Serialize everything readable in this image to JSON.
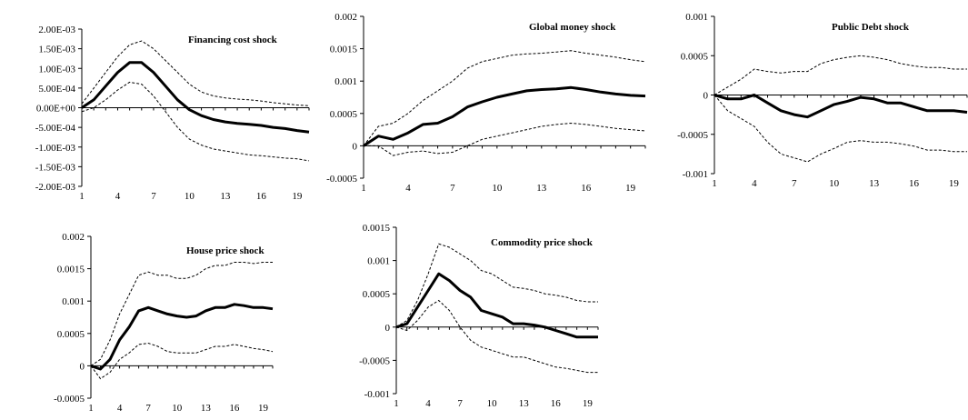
{
  "chart_data": [
    {
      "type": "line",
      "title": "Financing cost shock",
      "x": [
        1,
        2,
        3,
        4,
        5,
        6,
        7,
        8,
        9,
        10,
        11,
        12,
        13,
        14,
        15,
        16,
        17,
        18,
        19,
        20
      ],
      "ylim": [
        -0.002,
        0.002
      ],
      "yticks": [
        0.002,
        0.0015,
        0.001,
        0.0005,
        0,
        -0.0005,
        -0.001,
        -0.0015,
        -0.002
      ],
      "ytick_labels": [
        "2.00E-03",
        "1.50E-03",
        "1.00E-03",
        "5.00E-04",
        "0.00E+00",
        "-5.00E-04",
        "-1.00E-03",
        "-1.50E-03",
        "-2.00E-03"
      ],
      "xticks": [
        1,
        4,
        7,
        10,
        13,
        16,
        19
      ],
      "xtick_labels": [
        "1",
        "4",
        "7",
        "10",
        "13",
        "16",
        "19"
      ],
      "grid": false,
      "series": [
        {
          "style": "solid",
          "values": [
            0,
            0.0002,
            0.00055,
            0.0009,
            0.00115,
            0.00115,
            0.0009,
            0.00055,
            0.0002,
            -5e-05,
            -0.0002,
            -0.0003,
            -0.00036,
            -0.0004,
            -0.00042,
            -0.00045,
            -0.0005,
            -0.00053,
            -0.00058,
            -0.00062
          ]
        },
        {
          "style": "dashed",
          "values": [
            0.0001,
            0.0005,
            0.0009,
            0.0013,
            0.0016,
            0.0017,
            0.0015,
            0.0012,
            0.0009,
            0.0006,
            0.0004,
            0.0003,
            0.00025,
            0.00022,
            0.0002,
            0.00017,
            0.00013,
            0.0001,
            7e-05,
            5e-05
          ]
        },
        {
          "style": "dashed",
          "values": [
            -0.0001,
            0,
            0.0002,
            0.00045,
            0.00065,
            0.0006,
            0.0003,
            -0.0001,
            -0.0005,
            -0.0008,
            -0.00095,
            -0.00105,
            -0.0011,
            -0.00115,
            -0.0012,
            -0.00122,
            -0.00125,
            -0.00128,
            -0.0013,
            -0.00135
          ]
        }
      ]
    },
    {
      "type": "line",
      "title": "Global money shock",
      "x": [
        1,
        2,
        3,
        4,
        5,
        6,
        7,
        8,
        9,
        10,
        11,
        12,
        13,
        14,
        15,
        16,
        17,
        18,
        19,
        20
      ],
      "ylim": [
        -0.0005,
        0.002
      ],
      "yticks": [
        0.002,
        0.0015,
        0.001,
        0.0005,
        0,
        -0.0005
      ],
      "ytick_labels": [
        "0.002",
        "0.0015",
        "0.001",
        "0.0005",
        "0",
        "-0.0005"
      ],
      "xticks": [
        1,
        4,
        7,
        10,
        13,
        16,
        19
      ],
      "xtick_labels": [
        "1",
        "4",
        "7",
        "10",
        "13",
        "16",
        "19"
      ],
      "grid": false,
      "series": [
        {
          "style": "solid",
          "values": [
            0,
            0.00015,
            0.0001,
            0.0002,
            0.00033,
            0.00035,
            0.00045,
            0.0006,
            0.00068,
            0.00075,
            0.0008,
            0.00085,
            0.00087,
            0.00088,
            0.0009,
            0.00087,
            0.00083,
            0.0008,
            0.00078,
            0.00077
          ]
        },
        {
          "style": "dashed",
          "values": [
            0,
            0.0003,
            0.00035,
            0.0005,
            0.0007,
            0.00085,
            0.001,
            0.0012,
            0.0013,
            0.00135,
            0.0014,
            0.00142,
            0.00143,
            0.00145,
            0.00147,
            0.00143,
            0.0014,
            0.00137,
            0.00133,
            0.0013
          ]
        },
        {
          "style": "dashed",
          "values": [
            0,
            0,
            -0.00015,
            -0.0001,
            -8e-05,
            -0.00012,
            -0.0001,
            0,
            0.0001,
            0.00015,
            0.0002,
            0.00025,
            0.0003,
            0.00033,
            0.00035,
            0.00033,
            0.0003,
            0.00027,
            0.00025,
            0.00023
          ]
        }
      ]
    },
    {
      "type": "line",
      "title": "Public Debt shock",
      "x": [
        1,
        2,
        3,
        4,
        5,
        6,
        7,
        8,
        9,
        10,
        11,
        12,
        13,
        14,
        15,
        16,
        17,
        18,
        19,
        20
      ],
      "ylim": [
        -0.001,
        0.001
      ],
      "yticks": [
        0.001,
        0.0005,
        0,
        -0.0005,
        -0.001
      ],
      "ytick_labels": [
        "0.001",
        "0.0005",
        "0",
        "-0.0005",
        "-0.001"
      ],
      "xticks": [
        1,
        4,
        7,
        10,
        13,
        16,
        19
      ],
      "xtick_labels": [
        "1",
        "4",
        "7",
        "10",
        "13",
        "16",
        "19"
      ],
      "grid": false,
      "series": [
        {
          "style": "solid",
          "values": [
            0,
            -5e-05,
            -5e-05,
            0,
            -0.0001,
            -0.0002,
            -0.00025,
            -0.00028,
            -0.0002,
            -0.00012,
            -8e-05,
            -3e-05,
            -5e-05,
            -0.0001,
            -0.0001,
            -0.00015,
            -0.0002,
            -0.0002,
            -0.0002,
            -0.00022
          ]
        },
        {
          "style": "dashed",
          "values": [
            0,
            0.0001,
            0.0002,
            0.00033,
            0.0003,
            0.00028,
            0.0003,
            0.0003,
            0.0004,
            0.00045,
            0.00048,
            0.0005,
            0.00048,
            0.00045,
            0.0004,
            0.00037,
            0.00035,
            0.00035,
            0.00033,
            0.00033
          ]
        },
        {
          "style": "dashed",
          "values": [
            0,
            -0.0002,
            -0.0003,
            -0.0004,
            -0.0006,
            -0.00075,
            -0.0008,
            -0.00085,
            -0.00075,
            -0.00068,
            -0.0006,
            -0.00058,
            -0.0006,
            -0.0006,
            -0.00062,
            -0.00065,
            -0.0007,
            -0.0007,
            -0.00072,
            -0.00072
          ]
        }
      ]
    },
    {
      "type": "line",
      "title": "House price shock",
      "x": [
        1,
        2,
        3,
        4,
        5,
        6,
        7,
        8,
        9,
        10,
        11,
        12,
        13,
        14,
        15,
        16,
        17,
        18,
        19,
        20
      ],
      "ylim": [
        -0.0005,
        0.002
      ],
      "yticks": [
        0.002,
        0.0015,
        0.001,
        0.0005,
        0,
        -0.0005
      ],
      "ytick_labels": [
        "0.002",
        "0.0015",
        "0.001",
        "0.0005",
        "0",
        "-0.0005"
      ],
      "xticks": [
        1,
        4,
        7,
        10,
        13,
        16,
        19
      ],
      "xtick_labels": [
        "1",
        "4",
        "7",
        "10",
        "13",
        "16",
        "19"
      ],
      "grid": false,
      "series": [
        {
          "style": "solid",
          "values": [
            0,
            -5e-05,
            0.0001,
            0.0004,
            0.0006,
            0.00085,
            0.0009,
            0.00085,
            0.0008,
            0.00077,
            0.00075,
            0.00077,
            0.00085,
            0.0009,
            0.0009,
            0.00095,
            0.00093,
            0.0009,
            0.0009,
            0.00088
          ]
        },
        {
          "style": "dashed",
          "values": [
            0,
            0.0001,
            0.0004,
            0.0008,
            0.0011,
            0.0014,
            0.00145,
            0.0014,
            0.0014,
            0.00135,
            0.00135,
            0.0014,
            0.0015,
            0.00155,
            0.00155,
            0.0016,
            0.0016,
            0.00158,
            0.0016,
            0.0016
          ]
        },
        {
          "style": "dashed",
          "values": [
            0,
            -0.0002,
            -0.0001,
            0.0001,
            0.0002,
            0.00033,
            0.00035,
            0.0003,
            0.00022,
            0.0002,
            0.0002,
            0.0002,
            0.00025,
            0.0003,
            0.0003,
            0.00033,
            0.0003,
            0.00027,
            0.00025,
            0.00022
          ]
        }
      ]
    },
    {
      "type": "line",
      "title": "Commodity price shock",
      "x": [
        1,
        2,
        3,
        4,
        5,
        6,
        7,
        8,
        9,
        10,
        11,
        12,
        13,
        14,
        15,
        16,
        17,
        18,
        19,
        20
      ],
      "ylim": [
        -0.001,
        0.0015
      ],
      "yticks": [
        0.0015,
        0.001,
        0.0005,
        0,
        -0.0005,
        -0.001
      ],
      "ytick_labels": [
        "0.0015",
        "0.001",
        "0.0005",
        "0",
        "-0.0005",
        "-0.001"
      ],
      "xticks": [
        1,
        4,
        7,
        10,
        13,
        16,
        19
      ],
      "xtick_labels": [
        "1",
        "4",
        "7",
        "10",
        "13",
        "16",
        "19"
      ],
      "grid": false,
      "series": [
        {
          "style": "solid",
          "values": [
            0,
            5e-05,
            0.0003,
            0.00055,
            0.0008,
            0.0007,
            0.00055,
            0.00045,
            0.00025,
            0.0002,
            0.00015,
            5e-05,
            5e-05,
            3e-05,
            0,
            -5e-05,
            -0.0001,
            -0.00015,
            -0.00015,
            -0.00015
          ]
        },
        {
          "style": "dashed",
          "values": [
            0,
            0.0001,
            0.0004,
            0.0008,
            0.00125,
            0.0012,
            0.0011,
            0.001,
            0.00085,
            0.0008,
            0.0007,
            0.0006,
            0.00058,
            0.00055,
            0.0005,
            0.00048,
            0.00045,
            0.0004,
            0.00038,
            0.00038
          ]
        },
        {
          "style": "dashed",
          "values": [
            0,
            -5e-05,
            0.0001,
            0.0003,
            0.0004,
            0.00025,
            0,
            -0.0002,
            -0.0003,
            -0.00035,
            -0.0004,
            -0.00045,
            -0.00045,
            -0.0005,
            -0.00055,
            -0.0006,
            -0.00062,
            -0.00065,
            -0.00068,
            -0.00068
          ]
        }
      ]
    }
  ]
}
